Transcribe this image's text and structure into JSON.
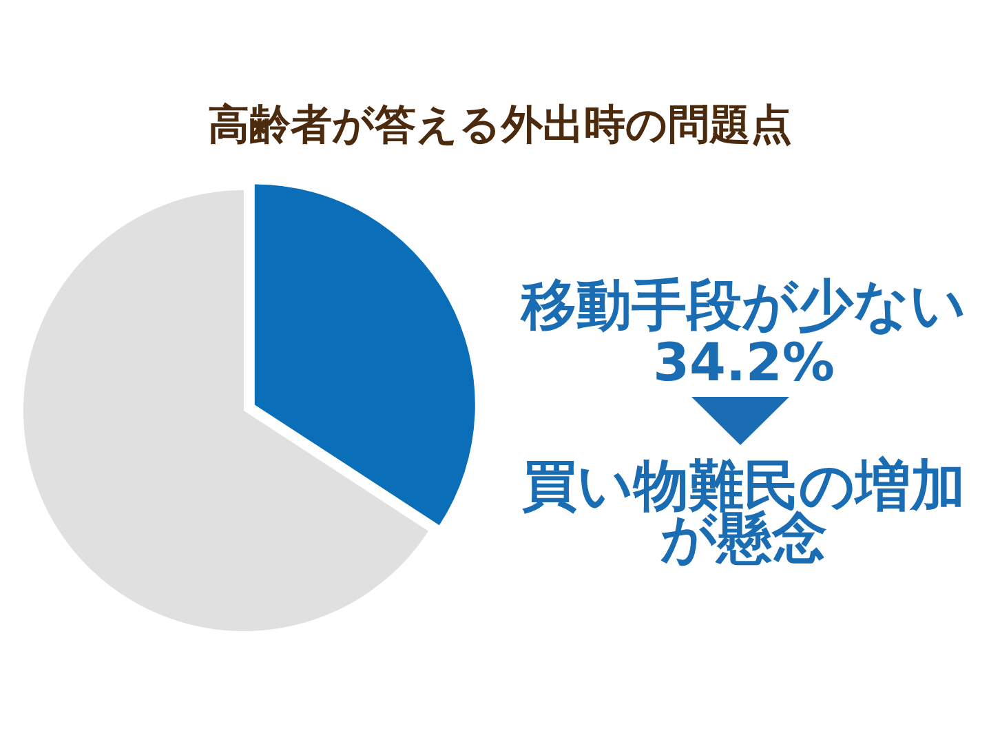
{
  "chart_data": {
    "type": "pie",
    "title": "高齢者が答える外出時の問題点",
    "categories": [
      "移動手段が少ない",
      null
    ],
    "values": [
      34.2,
      65.8
    ],
    "colors": [
      "#0a6eb8",
      "#e0e0e0"
    ],
    "value_labels": [
      "34.2%",
      null
    ],
    "annotations": [
      "買い物難民の増加が懸念"
    ]
  }
}
